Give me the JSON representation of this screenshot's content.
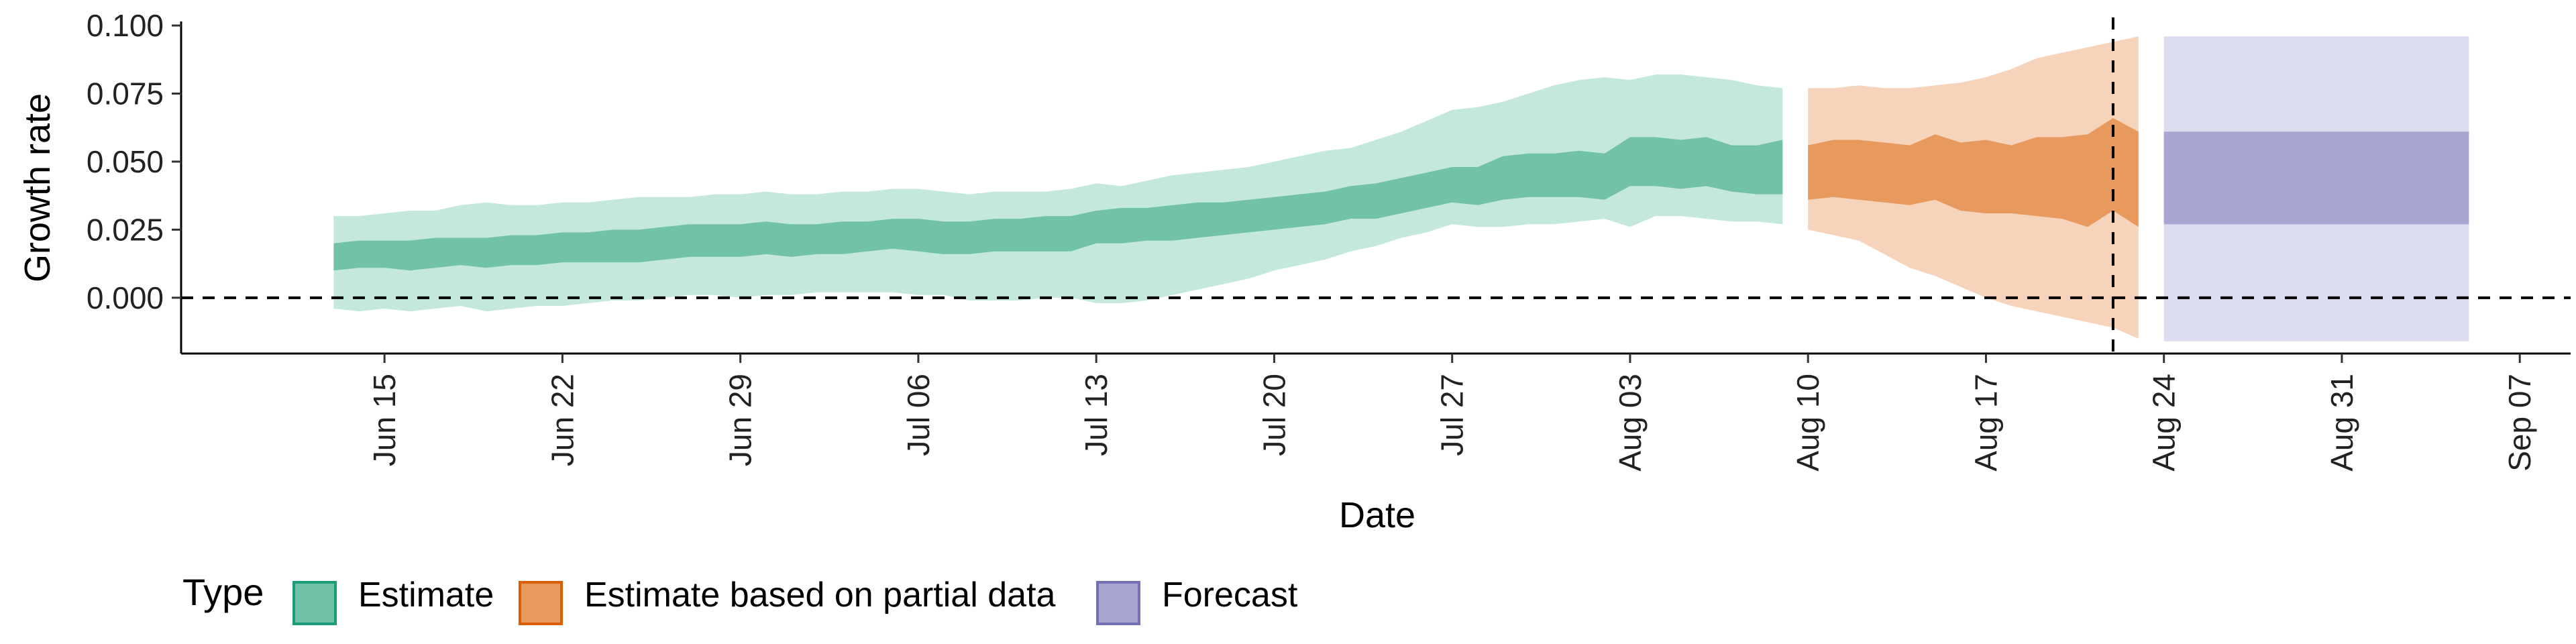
{
  "chart_data": {
    "type": "area",
    "title": "",
    "xlabel": "Date",
    "ylabel": "Growth rate",
    "xlim": [
      "2021-06-07",
      "2021-09-09"
    ],
    "ylim": [
      -0.0205,
      0.1005
    ],
    "x_ticks": [
      {
        "date": "2021-06-15",
        "label": "Jun 15"
      },
      {
        "date": "2021-06-22",
        "label": "Jun 22"
      },
      {
        "date": "2021-06-29",
        "label": "Jun 29"
      },
      {
        "date": "2021-07-06",
        "label": "Jul 06"
      },
      {
        "date": "2021-07-13",
        "label": "Jul 13"
      },
      {
        "date": "2021-07-20",
        "label": "Jul 20"
      },
      {
        "date": "2021-07-27",
        "label": "Jul 27"
      },
      {
        "date": "2021-08-03",
        "label": "Aug 03"
      },
      {
        "date": "2021-08-10",
        "label": "Aug 10"
      },
      {
        "date": "2021-08-17",
        "label": "Aug 17"
      },
      {
        "date": "2021-08-24",
        "label": "Aug 24"
      },
      {
        "date": "2021-08-31",
        "label": "Aug 31"
      },
      {
        "date": "2021-09-07",
        "label": "Sep 07"
      }
    ],
    "y_ticks": [
      {
        "value": 0.0,
        "label": "0.000"
      },
      {
        "value": 0.025,
        "label": "0.025"
      },
      {
        "value": 0.05,
        "label": "0.050"
      },
      {
        "value": 0.075,
        "label": "0.075"
      },
      {
        "value": 0.1,
        "label": "0.100"
      }
    ],
    "reference_lines": {
      "horizontal_y": 0.0,
      "vertical_date": "2021-08-22"
    },
    "legend": {
      "title": "Type",
      "position": "bottom",
      "items": [
        {
          "label": "Estimate",
          "fill": "#72c2aa",
          "border": "#1b9e77"
        },
        {
          "label": "Estimate based on partial data",
          "fill": "#e89a5e",
          "border": "#d95f02"
        },
        {
          "label": "Forecast",
          "fill": "#a8a5d2",
          "border": "#7570b3"
        }
      ]
    },
    "series": [
      {
        "name": "Estimate",
        "inner_color": "#72c2aa",
        "outer_color": "#c5e8dd",
        "points": [
          {
            "x": "2021-06-13",
            "lo90": -0.004,
            "lo50": 0.01,
            "hi50": 0.02,
            "hi90": 0.03
          },
          {
            "x": "2021-06-14",
            "lo90": -0.005,
            "lo50": 0.011,
            "hi50": 0.021,
            "hi90": 0.03
          },
          {
            "x": "2021-06-15",
            "lo90": -0.004,
            "lo50": 0.011,
            "hi50": 0.021,
            "hi90": 0.031
          },
          {
            "x": "2021-06-16",
            "lo90": -0.005,
            "lo50": 0.01,
            "hi50": 0.021,
            "hi90": 0.032
          },
          {
            "x": "2021-06-17",
            "lo90": -0.004,
            "lo50": 0.011,
            "hi50": 0.022,
            "hi90": 0.032
          },
          {
            "x": "2021-06-18",
            "lo90": -0.003,
            "lo50": 0.012,
            "hi50": 0.022,
            "hi90": 0.034
          },
          {
            "x": "2021-06-19",
            "lo90": -0.005,
            "lo50": 0.011,
            "hi50": 0.022,
            "hi90": 0.035
          },
          {
            "x": "2021-06-20",
            "lo90": -0.004,
            "lo50": 0.012,
            "hi50": 0.023,
            "hi90": 0.034
          },
          {
            "x": "2021-06-21",
            "lo90": -0.003,
            "lo50": 0.012,
            "hi50": 0.023,
            "hi90": 0.034
          },
          {
            "x": "2021-06-22",
            "lo90": -0.003,
            "lo50": 0.013,
            "hi50": 0.024,
            "hi90": 0.035
          },
          {
            "x": "2021-06-23",
            "lo90": -0.002,
            "lo50": 0.013,
            "hi50": 0.024,
            "hi90": 0.035
          },
          {
            "x": "2021-06-24",
            "lo90": -0.001,
            "lo50": 0.013,
            "hi50": 0.025,
            "hi90": 0.036
          },
          {
            "x": "2021-06-25",
            "lo90": -0.001,
            "lo50": 0.013,
            "hi50": 0.025,
            "hi90": 0.037
          },
          {
            "x": "2021-06-26",
            "lo90": 0.0,
            "lo50": 0.014,
            "hi50": 0.026,
            "hi90": 0.037
          },
          {
            "x": "2021-06-27",
            "lo90": 0.001,
            "lo50": 0.015,
            "hi50": 0.027,
            "hi90": 0.037
          },
          {
            "x": "2021-06-28",
            "lo90": 0.001,
            "lo50": 0.015,
            "hi50": 0.027,
            "hi90": 0.038
          },
          {
            "x": "2021-06-29",
            "lo90": 0.0,
            "lo50": 0.015,
            "hi50": 0.027,
            "hi90": 0.038
          },
          {
            "x": "2021-06-30",
            "lo90": 0.001,
            "lo50": 0.016,
            "hi50": 0.028,
            "hi90": 0.039
          },
          {
            "x": "2021-07-01",
            "lo90": 0.001,
            "lo50": 0.015,
            "hi50": 0.027,
            "hi90": 0.038
          },
          {
            "x": "2021-07-02",
            "lo90": 0.002,
            "lo50": 0.016,
            "hi50": 0.027,
            "hi90": 0.038
          },
          {
            "x": "2021-07-03",
            "lo90": 0.002,
            "lo50": 0.016,
            "hi50": 0.028,
            "hi90": 0.039
          },
          {
            "x": "2021-07-04",
            "lo90": 0.002,
            "lo50": 0.017,
            "hi50": 0.028,
            "hi90": 0.039
          },
          {
            "x": "2021-07-05",
            "lo90": 0.002,
            "lo50": 0.018,
            "hi50": 0.029,
            "hi90": 0.04
          },
          {
            "x": "2021-07-06",
            "lo90": 0.001,
            "lo50": 0.017,
            "hi50": 0.029,
            "hi90": 0.04
          },
          {
            "x": "2021-07-07",
            "lo90": 0.001,
            "lo50": 0.016,
            "hi50": 0.028,
            "hi90": 0.039
          },
          {
            "x": "2021-07-08",
            "lo90": -0.001,
            "lo50": 0.016,
            "hi50": 0.028,
            "hi90": 0.038
          },
          {
            "x": "2021-07-09",
            "lo90": -0.001,
            "lo50": 0.017,
            "hi50": 0.029,
            "hi90": 0.039
          },
          {
            "x": "2021-07-10",
            "lo90": -0.001,
            "lo50": 0.017,
            "hi50": 0.029,
            "hi90": 0.039
          },
          {
            "x": "2021-07-11",
            "lo90": 0.0,
            "lo50": 0.017,
            "hi50": 0.03,
            "hi90": 0.039
          },
          {
            "x": "2021-07-12",
            "lo90": 0.0,
            "lo50": 0.017,
            "hi50": 0.03,
            "hi90": 0.04
          },
          {
            "x": "2021-07-13",
            "lo90": -0.002,
            "lo50": 0.02,
            "hi50": 0.032,
            "hi90": 0.042
          },
          {
            "x": "2021-07-14",
            "lo90": -0.002,
            "lo50": 0.02,
            "hi50": 0.033,
            "hi90": 0.041
          },
          {
            "x": "2021-07-15",
            "lo90": -0.001,
            "lo50": 0.021,
            "hi50": 0.033,
            "hi90": 0.043
          },
          {
            "x": "2021-07-16",
            "lo90": 0.001,
            "lo50": 0.021,
            "hi50": 0.034,
            "hi90": 0.045
          },
          {
            "x": "2021-07-17",
            "lo90": 0.003,
            "lo50": 0.022,
            "hi50": 0.035,
            "hi90": 0.046
          },
          {
            "x": "2021-07-18",
            "lo90": 0.005,
            "lo50": 0.023,
            "hi50": 0.035,
            "hi90": 0.047
          },
          {
            "x": "2021-07-19",
            "lo90": 0.007,
            "lo50": 0.024,
            "hi50": 0.036,
            "hi90": 0.048
          },
          {
            "x": "2021-07-20",
            "lo90": 0.01,
            "lo50": 0.025,
            "hi50": 0.037,
            "hi90": 0.05
          },
          {
            "x": "2021-07-21",
            "lo90": 0.012,
            "lo50": 0.026,
            "hi50": 0.038,
            "hi90": 0.052
          },
          {
            "x": "2021-07-22",
            "lo90": 0.014,
            "lo50": 0.027,
            "hi50": 0.039,
            "hi90": 0.054
          },
          {
            "x": "2021-07-23",
            "lo90": 0.017,
            "lo50": 0.029,
            "hi50": 0.041,
            "hi90": 0.055
          },
          {
            "x": "2021-07-24",
            "lo90": 0.019,
            "lo50": 0.029,
            "hi50": 0.042,
            "hi90": 0.058
          },
          {
            "x": "2021-07-25",
            "lo90": 0.022,
            "lo50": 0.031,
            "hi50": 0.044,
            "hi90": 0.061
          },
          {
            "x": "2021-07-26",
            "lo90": 0.024,
            "lo50": 0.033,
            "hi50": 0.046,
            "hi90": 0.065
          },
          {
            "x": "2021-07-27",
            "lo90": 0.027,
            "lo50": 0.035,
            "hi50": 0.048,
            "hi90": 0.069
          },
          {
            "x": "2021-07-28",
            "lo90": 0.026,
            "lo50": 0.034,
            "hi50": 0.048,
            "hi90": 0.07
          },
          {
            "x": "2021-07-29",
            "lo90": 0.026,
            "lo50": 0.036,
            "hi50": 0.052,
            "hi90": 0.072
          },
          {
            "x": "2021-07-30",
            "lo90": 0.027,
            "lo50": 0.037,
            "hi50": 0.053,
            "hi90": 0.075
          },
          {
            "x": "2021-07-31",
            "lo90": 0.027,
            "lo50": 0.037,
            "hi50": 0.053,
            "hi90": 0.078
          },
          {
            "x": "2021-08-01",
            "lo90": 0.028,
            "lo50": 0.037,
            "hi50": 0.054,
            "hi90": 0.08
          },
          {
            "x": "2021-08-02",
            "lo90": 0.029,
            "lo50": 0.036,
            "hi50": 0.053,
            "hi90": 0.081
          },
          {
            "x": "2021-08-03",
            "lo90": 0.026,
            "lo50": 0.041,
            "hi50": 0.059,
            "hi90": 0.08
          },
          {
            "x": "2021-08-04",
            "lo90": 0.03,
            "lo50": 0.041,
            "hi50": 0.059,
            "hi90": 0.082
          },
          {
            "x": "2021-08-05",
            "lo90": 0.03,
            "lo50": 0.04,
            "hi50": 0.058,
            "hi90": 0.082
          },
          {
            "x": "2021-08-06",
            "lo90": 0.029,
            "lo50": 0.041,
            "hi50": 0.059,
            "hi90": 0.081
          },
          {
            "x": "2021-08-07",
            "lo90": 0.028,
            "lo50": 0.039,
            "hi50": 0.056,
            "hi90": 0.08
          },
          {
            "x": "2021-08-08",
            "lo90": 0.028,
            "lo50": 0.038,
            "hi50": 0.056,
            "hi90": 0.078
          },
          {
            "x": "2021-08-09",
            "lo90": 0.027,
            "lo50": 0.038,
            "hi50": 0.058,
            "hi90": 0.077
          }
        ]
      },
      {
        "name": "Estimate based on partial data",
        "inner_color": "#e89a5e",
        "outer_color": "#f6d3bb",
        "points": [
          {
            "x": "2021-08-10",
            "lo90": 0.025,
            "lo50": 0.036,
            "hi50": 0.056,
            "hi90": 0.077
          },
          {
            "x": "2021-08-11",
            "lo90": 0.023,
            "lo50": 0.037,
            "hi50": 0.058,
            "hi90": 0.077
          },
          {
            "x": "2021-08-12",
            "lo90": 0.021,
            "lo50": 0.036,
            "hi50": 0.058,
            "hi90": 0.078
          },
          {
            "x": "2021-08-13",
            "lo90": 0.016,
            "lo50": 0.035,
            "hi50": 0.057,
            "hi90": 0.077
          },
          {
            "x": "2021-08-14",
            "lo90": 0.011,
            "lo50": 0.034,
            "hi50": 0.056,
            "hi90": 0.077
          },
          {
            "x": "2021-08-15",
            "lo90": 0.008,
            "lo50": 0.036,
            "hi50": 0.06,
            "hi90": 0.078
          },
          {
            "x": "2021-08-16",
            "lo90": 0.004,
            "lo50": 0.032,
            "hi50": 0.057,
            "hi90": 0.079
          },
          {
            "x": "2021-08-17",
            "lo90": 0.0,
            "lo50": 0.031,
            "hi50": 0.058,
            "hi90": 0.081
          },
          {
            "x": "2021-08-18",
            "lo90": -0.003,
            "lo50": 0.031,
            "hi50": 0.056,
            "hi90": 0.084
          },
          {
            "x": "2021-08-19",
            "lo90": -0.005,
            "lo50": 0.03,
            "hi50": 0.059,
            "hi90": 0.088
          },
          {
            "x": "2021-08-20",
            "lo90": -0.007,
            "lo50": 0.029,
            "hi50": 0.059,
            "hi90": 0.09
          },
          {
            "x": "2021-08-21",
            "lo90": -0.009,
            "lo50": 0.026,
            "hi50": 0.06,
            "hi90": 0.092
          },
          {
            "x": "2021-08-22",
            "lo90": -0.011,
            "lo50": 0.032,
            "hi50": 0.066,
            "hi90": 0.094
          },
          {
            "x": "2021-08-23",
            "lo90": -0.015,
            "lo50": 0.026,
            "hi50": 0.061,
            "hi90": 0.096
          }
        ]
      },
      {
        "name": "Forecast",
        "inner_color": "#a8a5d2",
        "outer_color": "#dcdcef",
        "points": [
          {
            "x": "2021-08-24",
            "lo90": -0.016,
            "lo50": 0.027,
            "hi50": 0.061,
            "hi90": 0.096
          },
          {
            "x": "2021-09-05",
            "lo90": -0.016,
            "lo50": 0.027,
            "hi50": 0.061,
            "hi90": 0.096
          }
        ]
      }
    ]
  }
}
